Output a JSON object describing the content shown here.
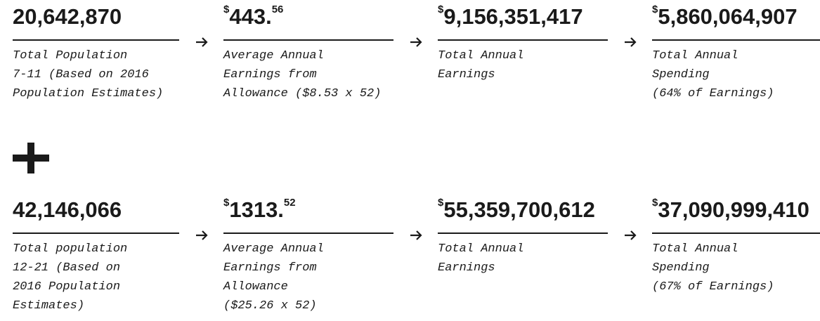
{
  "rows": [
    {
      "items": [
        {
          "main": "20,642,870",
          "lines": [
            "Total Population",
            "7-11 (Based on 2016",
            "Population Estimates)"
          ]
        },
        {
          "prefix": "$",
          "main": "443.",
          "sup": "56",
          "lines": [
            "Average Annual",
            "Earnings from",
            "Allowance ($8.53 x 52)"
          ]
        },
        {
          "prefix": "$",
          "main": "9,156,351,417",
          "lines": [
            "Total Annual",
            "Earnings"
          ]
        },
        {
          "prefix": "$",
          "main": "5,860,064,907",
          "lines": [
            "Total Annual",
            "Spending",
            "(64% of Earnings)"
          ]
        }
      ]
    },
    {
      "items": [
        {
          "main": "42,146,066",
          "lines": [
            "Total population",
            "12-21 (Based on",
            "2016 Population",
            "Estimates)"
          ]
        },
        {
          "prefix": "$",
          "main": "1313.",
          "sup": "52",
          "lines": [
            "Average Annual",
            "Earnings from",
            "Allowance",
            "($25.26 x 52)"
          ]
        },
        {
          "prefix": "$",
          "main": "55,359,700,612",
          "lines": [
            "Total Annual",
            "Earnings"
          ]
        },
        {
          "prefix": "$",
          "main": "37,090,999,410",
          "lines": [
            "Total Annual",
            "Spending",
            "(67% of Earnings)"
          ]
        }
      ]
    }
  ]
}
